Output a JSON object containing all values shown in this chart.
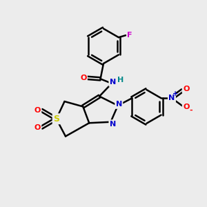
{
  "bg_color": "#ececec",
  "bond_color": "#000000",
  "bond_width": 1.8,
  "atom_colors": {
    "O": "#ff0000",
    "N": "#0000cc",
    "S": "#cccc00",
    "F": "#cc00cc",
    "H": "#008888",
    "plus": "#0000cc",
    "minus": "#ff0000"
  },
  "font_size": 8,
  "fig_size": [
    3.0,
    3.0
  ],
  "dpi": 100
}
